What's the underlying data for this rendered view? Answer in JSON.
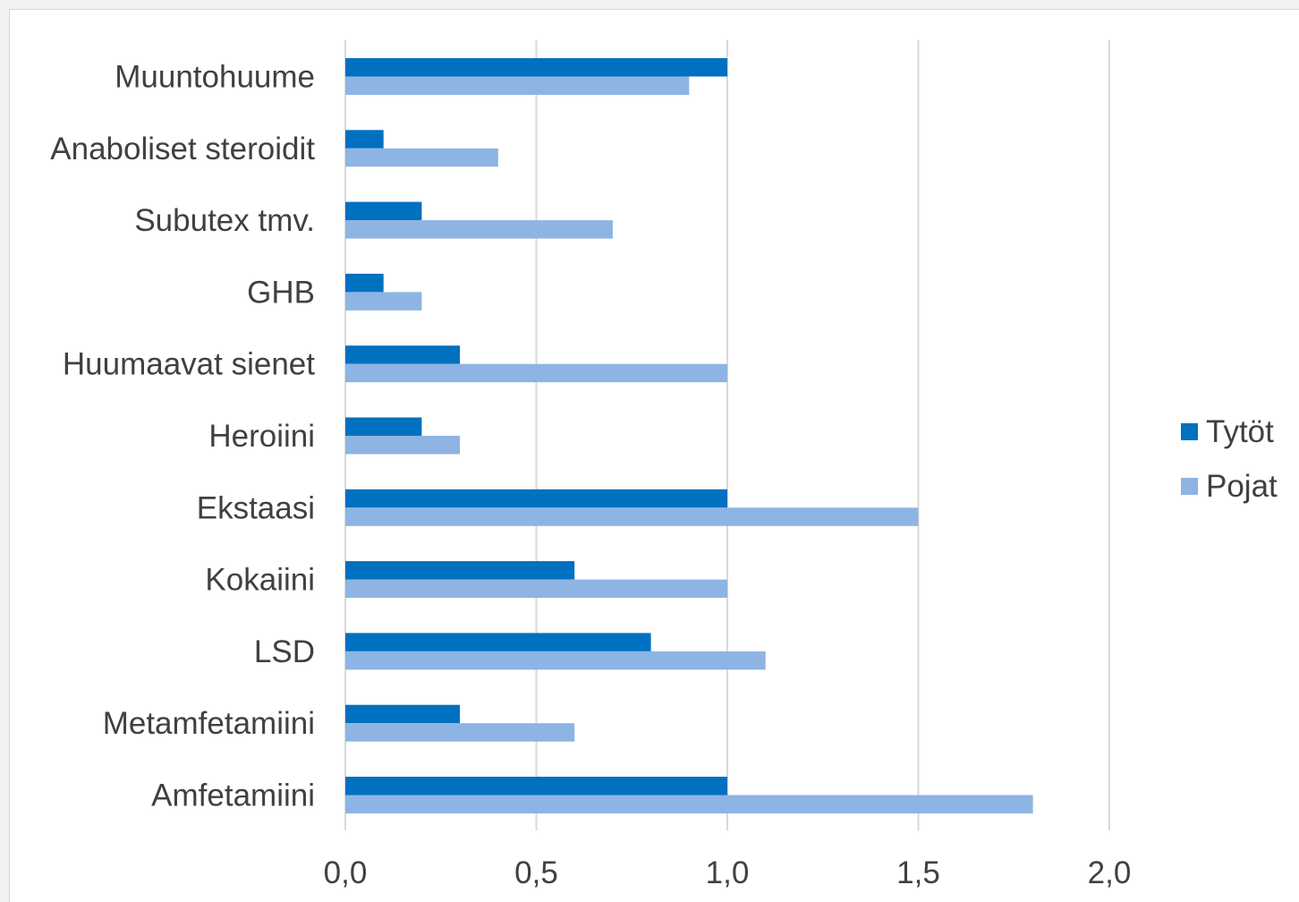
{
  "chart_data": {
    "type": "bar",
    "orientation": "horizontal",
    "categories": [
      "Muuntohuume",
      "Anaboliset steroidit",
      "Subutex tmv.",
      "GHB",
      "Huumaavat sienet",
      "Heroiini",
      "Ekstaasi",
      "Kokaiini",
      "LSD",
      "Metamfetamiini",
      "Amfetamiini"
    ],
    "series": [
      {
        "name": "Tytöt",
        "color": "#0070c0",
        "values": [
          1.0,
          0.1,
          0.2,
          0.1,
          0.3,
          0.2,
          1.0,
          0.6,
          0.8,
          0.3,
          1.0
        ]
      },
      {
        "name": "Pojat",
        "color": "#8eb4e3",
        "values": [
          0.9,
          0.4,
          0.7,
          0.2,
          1.0,
          0.3,
          1.5,
          1.0,
          1.1,
          0.6,
          1.8
        ]
      }
    ],
    "xlim": [
      0,
      2.0
    ],
    "xticks": [
      "0,0",
      "0,5",
      "1,0",
      "1,5",
      "2,0"
    ],
    "grid": true,
    "legend_position": "right"
  }
}
